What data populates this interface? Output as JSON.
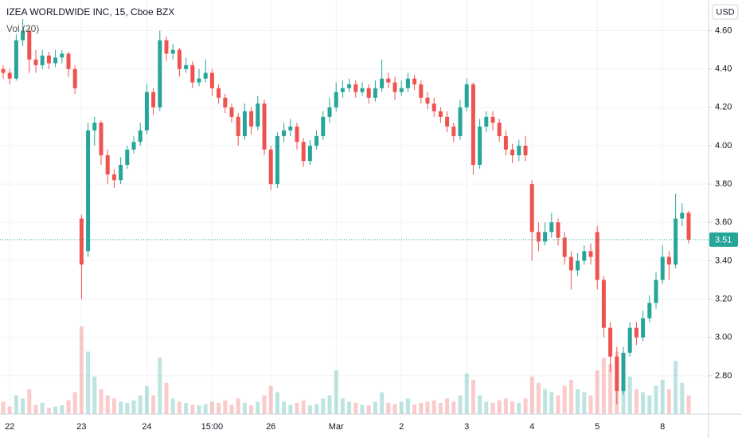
{
  "chart_data": {
    "type": "candlestick",
    "title": "IZEA WORLDWIDE INC, 15, Cboe BZX",
    "volume_label": "Vol (20)",
    "currency": "USD",
    "up_color": "#26a69a",
    "down_color": "#ef5350",
    "ylim": [
      2.6,
      4.76
    ],
    "yticks": [
      {
        "value": 2.8,
        "label": "2.80"
      },
      {
        "value": 3.0,
        "label": "3.00"
      },
      {
        "value": 3.2,
        "label": "3.20"
      },
      {
        "value": 3.4,
        "label": "3.40"
      },
      {
        "value": 3.6,
        "label": "3.60"
      },
      {
        "value": 3.8,
        "label": "3.80"
      },
      {
        "value": 4.0,
        "label": "4.00"
      },
      {
        "value": 4.2,
        "label": "4.20"
      },
      {
        "value": 4.4,
        "label": "4.40"
      },
      {
        "value": 4.6,
        "label": "4.60"
      }
    ],
    "grid": true,
    "categories": [
      null,
      "22",
      null,
      null,
      null,
      null,
      null,
      null,
      null,
      null,
      null,
      null,
      "23",
      null,
      null,
      null,
      null,
      null,
      null,
      null,
      null,
      null,
      "24",
      null,
      null,
      null,
      null,
      null,
      null,
      null,
      null,
      null,
      "15:00",
      null,
      null,
      null,
      null,
      null,
      null,
      null,
      null,
      "26",
      null,
      null,
      null,
      null,
      null,
      null,
      null,
      null,
      null,
      "Mar",
      null,
      null,
      null,
      null,
      null,
      null,
      null,
      null,
      null,
      "2",
      null,
      null,
      null,
      null,
      null,
      null,
      null,
      null,
      null,
      "3",
      null,
      null,
      null,
      null,
      null,
      null,
      null,
      null,
      null,
      "4",
      null,
      null,
      null,
      null,
      null,
      null,
      null,
      null,
      null,
      "5",
      null,
      null,
      null,
      null,
      null,
      null,
      null,
      null,
      null,
      "8",
      null,
      null,
      null,
      null
    ],
    "open": [
      4.4,
      4.38,
      4.35,
      4.55,
      4.6,
      4.45,
      4.42,
      4.47,
      4.43,
      4.46,
      4.48,
      4.4,
      3.62,
      3.45,
      4.08,
      4.12,
      3.95,
      3.85,
      3.82,
      3.9,
      3.98,
      4.02,
      4.08,
      4.28,
      4.2,
      4.55,
      4.48,
      4.5,
      4.4,
      4.42,
      4.33,
      4.35,
      4.38,
      4.3,
      4.25,
      4.2,
      4.15,
      4.05,
      4.18,
      4.1,
      4.22,
      3.98,
      3.8,
      4.05,
      4.08,
      4.1,
      4.02,
      3.92,
      4.0,
      4.05,
      4.15,
      4.2,
      4.28,
      4.3,
      4.32,
      4.28,
      4.3,
      4.25,
      4.3,
      4.35,
      4.33,
      4.28,
      4.3,
      4.35,
      4.32,
      4.25,
      4.22,
      4.18,
      4.15,
      4.1,
      4.05,
      4.2,
      4.32,
      3.9,
      4.1,
      4.15,
      4.12,
      4.05,
      3.98,
      3.95,
      4.0,
      3.8,
      3.55,
      3.5,
      3.55,
      3.6,
      3.52,
      3.42,
      3.35,
      3.4,
      3.45,
      3.55,
      3.3,
      3.05,
      2.9,
      2.72,
      2.92,
      3.05,
      3.0,
      3.1,
      3.18,
      3.3,
      3.42,
      3.38,
      3.62,
      3.65
    ],
    "high": [
      4.42,
      4.4,
      4.58,
      4.66,
      4.62,
      4.5,
      4.5,
      4.49,
      4.5,
      4.5,
      4.49,
      4.42,
      3.64,
      4.12,
      4.15,
      4.13,
      3.98,
      3.88,
      3.94,
      4.0,
      4.05,
      4.12,
      4.32,
      4.3,
      4.6,
      4.57,
      4.53,
      4.51,
      4.46,
      4.44,
      4.4,
      4.45,
      4.4,
      4.32,
      4.27,
      4.22,
      4.17,
      4.22,
      4.2,
      4.26,
      4.24,
      4.0,
      4.07,
      4.12,
      4.14,
      4.12,
      4.04,
      4.03,
      4.08,
      4.18,
      4.25,
      4.33,
      4.34,
      4.35,
      4.34,
      4.33,
      4.32,
      4.34,
      4.45,
      4.38,
      4.36,
      4.34,
      4.38,
      4.37,
      4.34,
      4.28,
      4.25,
      4.2,
      4.18,
      4.12,
      4.24,
      4.35,
      4.33,
      4.14,
      4.18,
      4.18,
      4.14,
      4.08,
      4.01,
      4.03,
      4.05,
      3.82,
      3.6,
      3.6,
      3.65,
      3.62,
      3.55,
      3.45,
      3.44,
      3.48,
      3.49,
      3.58,
      3.32,
      3.08,
      2.95,
      2.95,
      3.08,
      3.08,
      3.14,
      3.22,
      3.34,
      3.48,
      3.45,
      3.75,
      3.7,
      3.66
    ],
    "low": [
      4.35,
      4.32,
      4.34,
      4.52,
      4.38,
      4.38,
      4.4,
      4.4,
      4.41,
      4.43,
      4.36,
      4.27,
      3.2,
      3.42,
      4.0,
      3.9,
      3.8,
      3.78,
      3.8,
      3.88,
      3.96,
      4.0,
      4.06,
      4.16,
      4.18,
      4.44,
      4.45,
      4.36,
      4.38,
      4.3,
      4.31,
      4.33,
      4.26,
      4.22,
      4.17,
      4.12,
      4.0,
      4.03,
      4.06,
      4.08,
      3.95,
      3.77,
      3.78,
      4.02,
      4.05,
      3.98,
      3.89,
      3.9,
      3.98,
      4.03,
      4.12,
      4.18,
      4.25,
      4.28,
      4.25,
      4.26,
      4.22,
      4.23,
      4.28,
      4.3,
      4.24,
      4.26,
      4.28,
      4.29,
      4.22,
      4.19,
      4.15,
      4.12,
      4.07,
      4.02,
      4.03,
      4.18,
      3.85,
      3.88,
      4.07,
      4.08,
      4.02,
      3.95,
      3.91,
      3.92,
      3.92,
      3.4,
      3.45,
      3.48,
      3.52,
      3.48,
      3.38,
      3.25,
      3.32,
      3.38,
      3.38,
      3.25,
      3.0,
      2.82,
      2.65,
      2.7,
      2.9,
      2.96,
      2.98,
      3.08,
      3.15,
      3.28,
      3.3,
      3.36,
      3.58,
      3.49
    ],
    "close": [
      4.38,
      4.35,
      4.55,
      4.6,
      4.45,
      4.42,
      4.47,
      4.43,
      4.46,
      4.48,
      4.4,
      4.3,
      3.38,
      4.08,
      4.12,
      3.95,
      3.85,
      3.82,
      3.9,
      3.98,
      4.02,
      4.08,
      4.28,
      4.2,
      4.55,
      4.48,
      4.5,
      4.4,
      4.42,
      4.33,
      4.35,
      4.38,
      4.3,
      4.25,
      4.2,
      4.15,
      4.05,
      4.18,
      4.1,
      4.22,
      3.98,
      3.8,
      4.05,
      4.08,
      4.1,
      4.02,
      3.92,
      4.0,
      4.05,
      4.15,
      4.2,
      4.28,
      4.3,
      4.32,
      4.28,
      4.3,
      4.25,
      4.3,
      4.35,
      4.33,
      4.28,
      4.3,
      4.35,
      4.32,
      4.25,
      4.22,
      4.18,
      4.15,
      4.1,
      4.05,
      4.2,
      4.32,
      3.9,
      4.1,
      4.15,
      4.12,
      4.05,
      3.98,
      3.95,
      4.0,
      3.95,
      3.55,
      3.5,
      3.55,
      3.6,
      3.52,
      3.42,
      3.35,
      3.4,
      3.45,
      3.42,
      3.3,
      3.05,
      2.9,
      2.72,
      2.92,
      3.05,
      3.0,
      3.1,
      3.18,
      3.3,
      3.42,
      3.38,
      3.62,
      3.65,
      3.51
    ],
    "volume": [
      20,
      12,
      30,
      25,
      40,
      15,
      18,
      10,
      12,
      14,
      22,
      35,
      140,
      100,
      60,
      40,
      30,
      25,
      20,
      18,
      22,
      30,
      45,
      30,
      90,
      50,
      25,
      20,
      18,
      15,
      14,
      16,
      20,
      18,
      22,
      15,
      25,
      18,
      14,
      20,
      30,
      45,
      35,
      20,
      15,
      18,
      22,
      14,
      16,
      25,
      30,
      70,
      25,
      20,
      18,
      15,
      14,
      20,
      35,
      18,
      16,
      20,
      25,
      15,
      18,
      20,
      22,
      18,
      25,
      20,
      30,
      65,
      55,
      30,
      20,
      18,
      22,
      25,
      20,
      18,
      25,
      60,
      50,
      40,
      35,
      30,
      45,
      55,
      40,
      35,
      30,
      70,
      90,
      80,
      100,
      75,
      60,
      40,
      35,
      30,
      45,
      55,
      40,
      85,
      50,
      30
    ]
  }
}
